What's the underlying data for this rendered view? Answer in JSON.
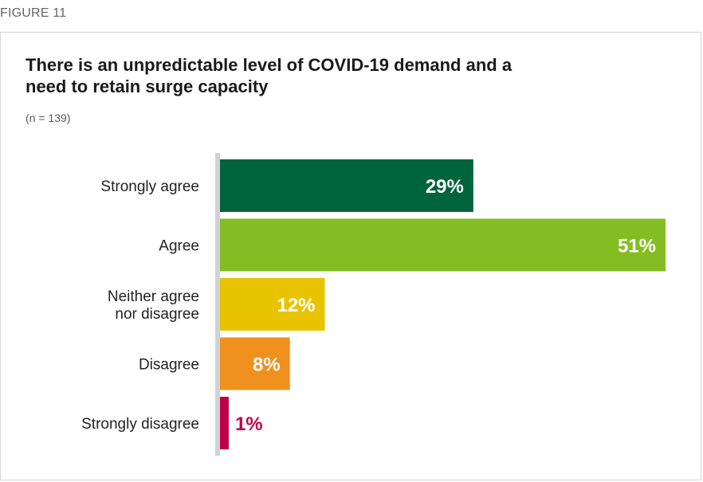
{
  "figure_label": "FIGURE 11",
  "title": "There is an unpredictable level of COVID-19 demand and a need to retain surge capacity",
  "subtitle": "(n = 139)",
  "chart_data": {
    "type": "bar",
    "orientation": "horizontal",
    "title": "There is an unpredictable level of COVID-19 demand and a need to retain surge capacity",
    "subtitle": "(n = 139)",
    "categories": [
      "Strongly agree",
      "Agree",
      "Neither agree nor disagree",
      "Disagree",
      "Strongly disagree"
    ],
    "category_lines": [
      [
        "Strongly agree"
      ],
      [
        "Agree"
      ],
      [
        "Neither agree",
        "nor disagree"
      ],
      [
        "Disagree"
      ],
      [
        "Strongly disagree"
      ]
    ],
    "values": [
      29,
      51,
      12,
      8,
      1
    ],
    "value_labels": [
      "29%",
      "51%",
      "12%",
      "8%",
      "1%"
    ],
    "colors": [
      "#00643c",
      "#84bd22",
      "#e8c300",
      "#f0901e",
      "#c00047"
    ],
    "label_colors": [
      "#ffffff",
      "#ffffff",
      "#ffffff",
      "#ffffff",
      "#c00047"
    ],
    "xlim": [
      0,
      51
    ],
    "grid": false,
    "legend": "none"
  }
}
